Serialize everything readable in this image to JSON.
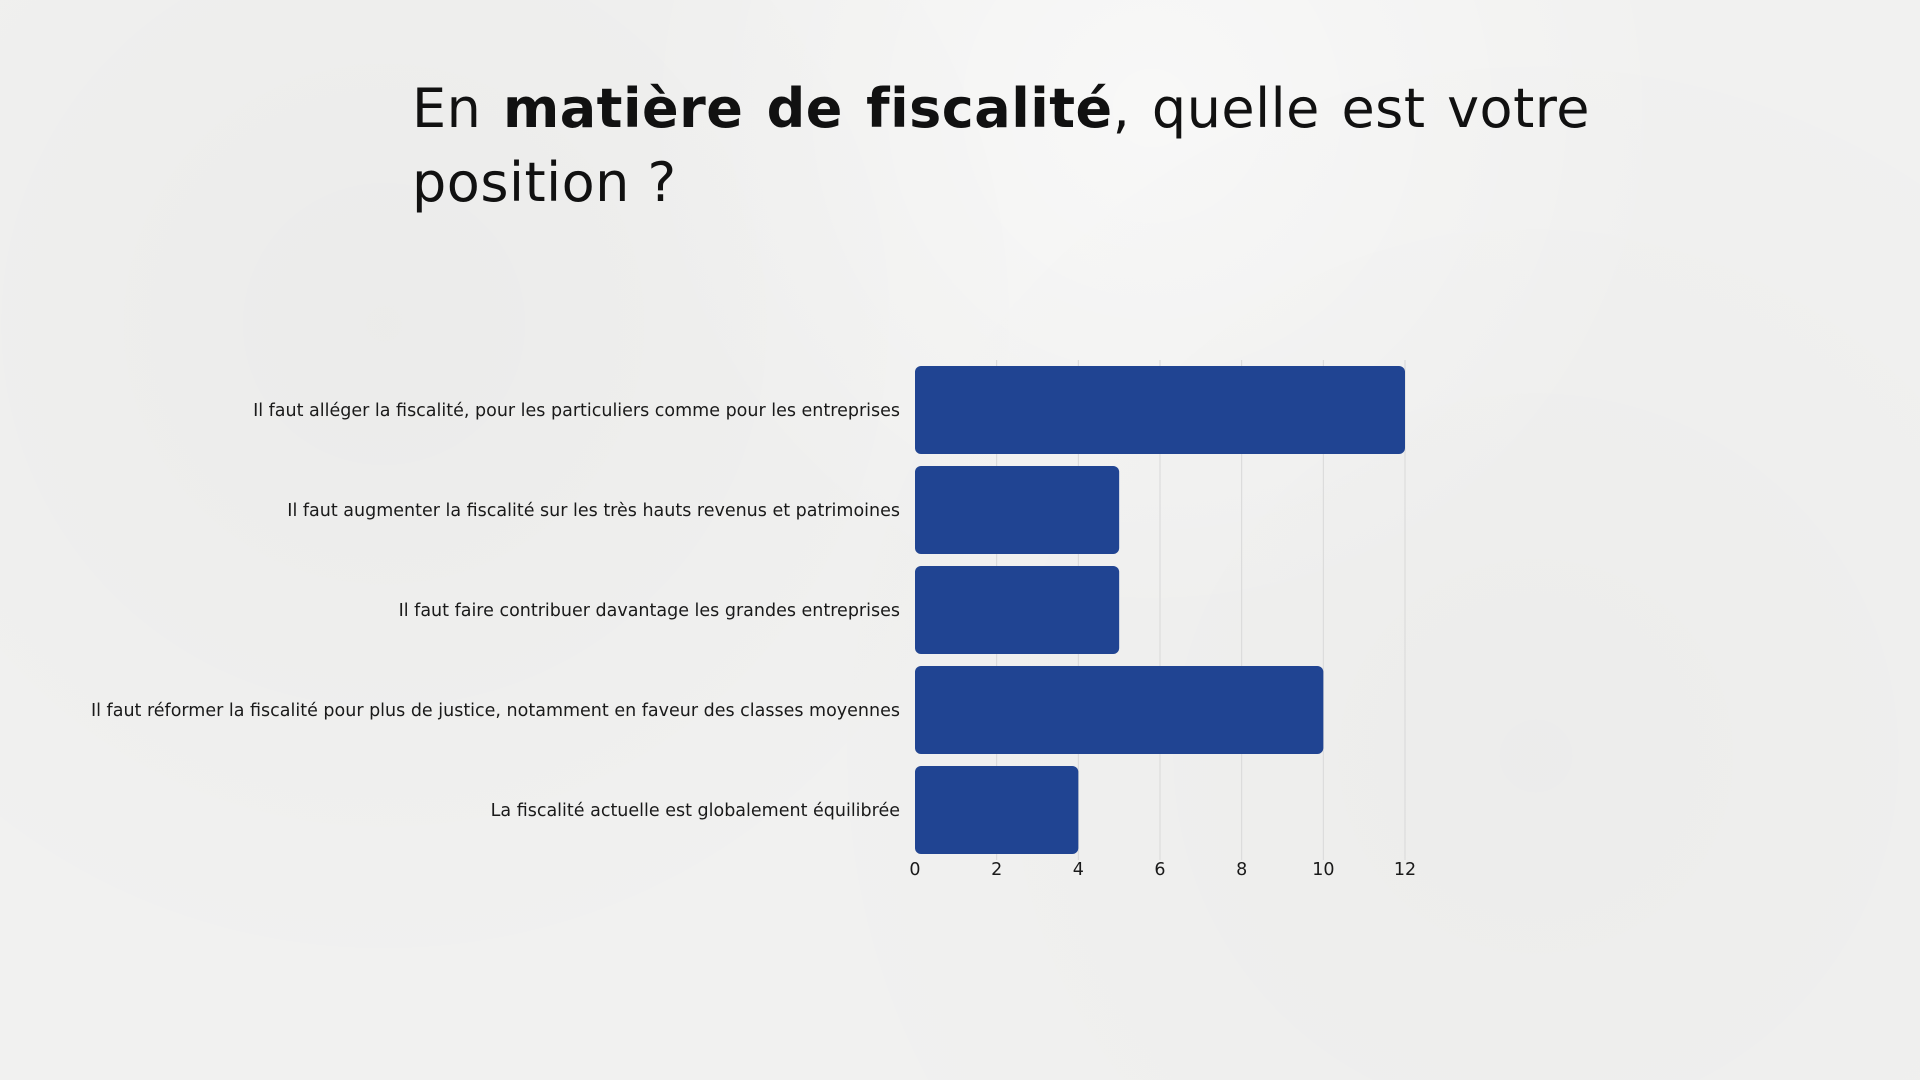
{
  "slide": {
    "title_part1": "En ",
    "title_bold": "matière de fiscalité",
    "title_part2": ", quelle est votre position ?"
  },
  "colors": {
    "bar": "#204492",
    "grid": "#d8d8d8",
    "background": "#f1f1f0"
  },
  "chart_data": {
    "type": "bar",
    "orientation": "horizontal",
    "categories": [
      "Il faut alléger la fiscalité, pour les particuliers comme pour les entreprises",
      "Il faut augmenter la fiscalité sur les très hauts revenus et patrimoines",
      "Il faut faire contribuer davantage les grandes entreprises",
      "Il faut réformer la fiscalité pour plus de justice, notamment en faveur des classes moyennes",
      "La fiscalité actuelle est globalement équilibrée"
    ],
    "values": [
      12,
      5,
      5,
      10,
      4
    ],
    "xlim": [
      0,
      12
    ],
    "xticks": [
      0,
      2,
      4,
      6,
      8,
      10,
      12
    ],
    "grid": true,
    "legend": false
  }
}
